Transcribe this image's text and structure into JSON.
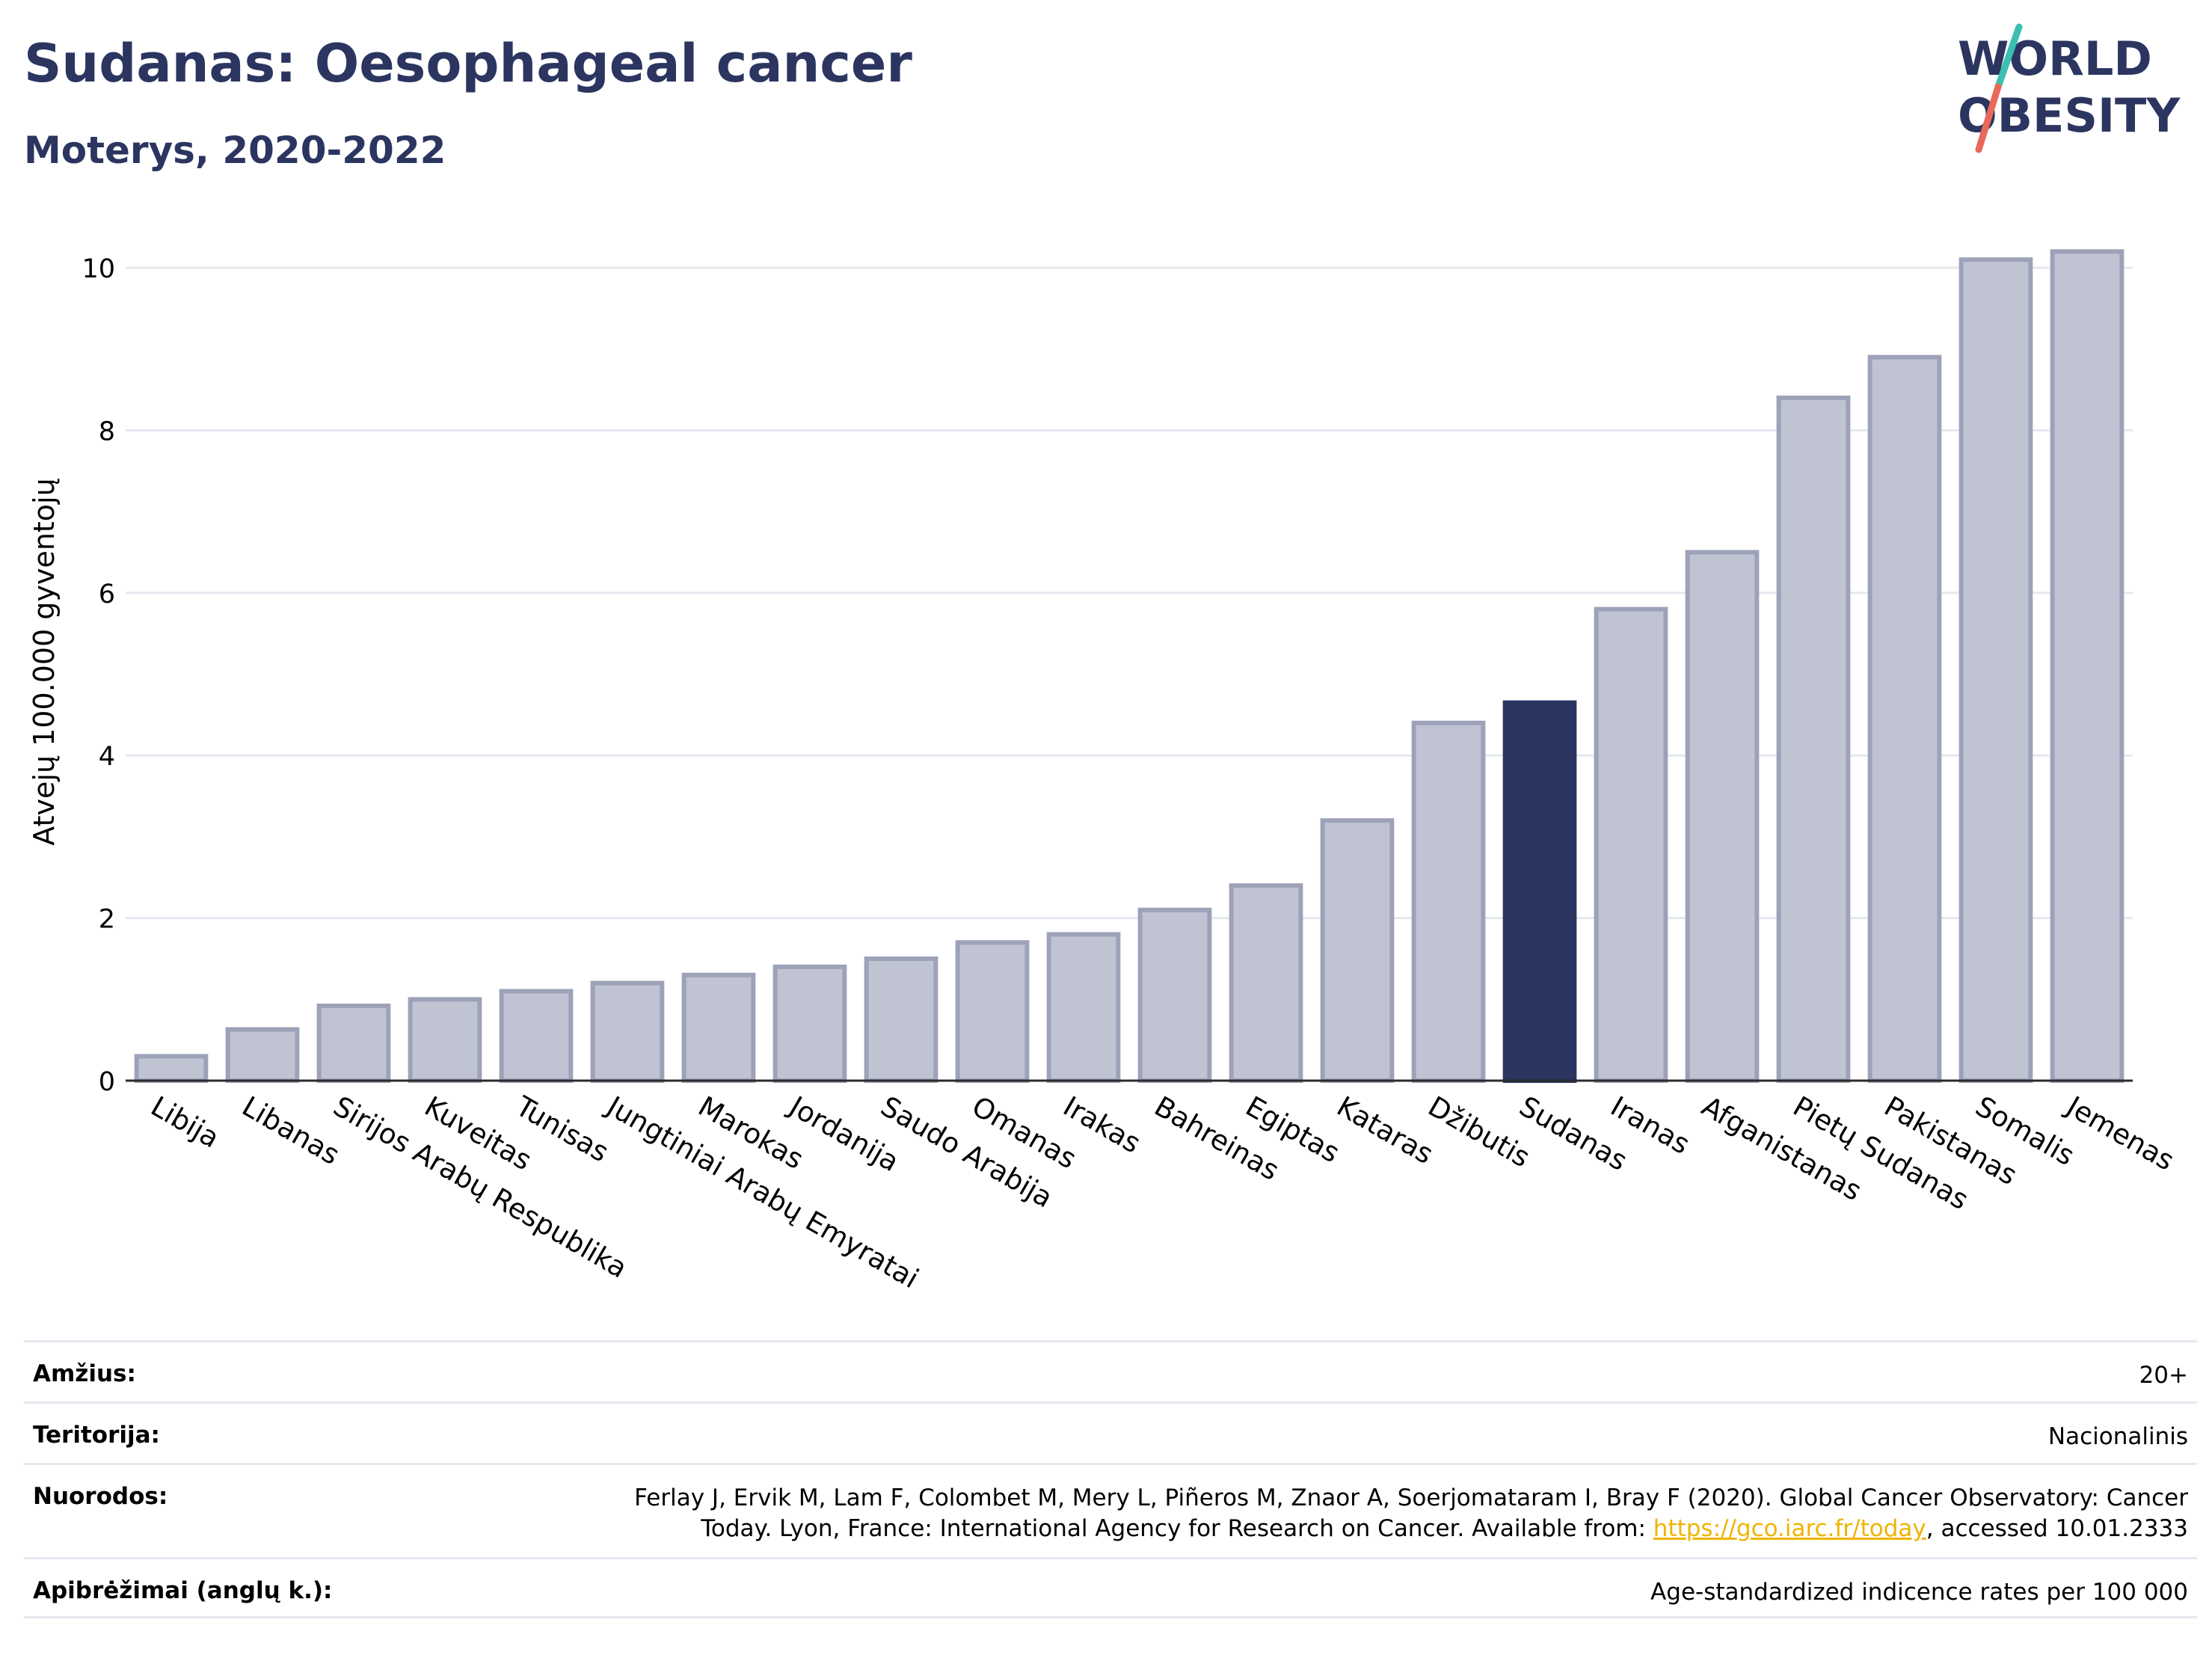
{
  "header": {
    "title": "Sudanas: Oesophageal cancer",
    "subtitle": "Moterys, 2020-2022",
    "logo_line1": "WORLD",
    "logo_line2": "OBESITY"
  },
  "colors": {
    "title": "#2b3560",
    "bar_default": "#c0c3d1",
    "bar_default_stroke": "#9da2b9",
    "bar_highlight": "#2b3560",
    "logo_teal": "#3bbfb0",
    "logo_red": "#e8685a"
  },
  "chart_data": {
    "type": "bar",
    "ylabel": "Atvejų 100.000 gyventojų",
    "ylim": [
      0,
      10.5
    ],
    "yticks": [
      0,
      2,
      4,
      6,
      8,
      10
    ],
    "grid": true,
    "highlight": "Sudanas",
    "categories": [
      "Libija",
      "Libanas",
      "Sirijos Arabų Respublika",
      "Kuveitas",
      "Tunisas",
      "Jungtiniai Arabų Emyratai",
      "Marokas",
      "Jordanija",
      "Saudo Arabija",
      "Omanas",
      "Irakas",
      "Bahreinas",
      "Egiptas",
      "Kataras",
      "Džibutis",
      "Sudanas",
      "Iranas",
      "Afganistanas",
      "Pietų Sudanas",
      "Pakistanas",
      "Somalis",
      "Jemenas"
    ],
    "values": [
      0.3,
      0.63,
      0.92,
      1.0,
      1.1,
      1.2,
      1.3,
      1.4,
      1.5,
      1.7,
      1.8,
      2.1,
      2.4,
      3.2,
      4.4,
      4.65,
      5.8,
      6.5,
      8.4,
      8.9,
      10.1,
      10.2
    ]
  },
  "info": {
    "age_label": "Amžius:",
    "age_value": "20+",
    "territory_label": "Teritorija:",
    "territory_value": "Nacionalinis",
    "refs_label": "Nuorodos:",
    "refs_line1": "Ferlay J, Ervik M, Lam F, Colombet M, Mery L, Piñeros M, Znaor A, Soerjomataram I, Bray F (2020). Global Cancer Observatory: Cancer",
    "refs_line2_pre": "Today. Lyon, France: International Agency for Research on Cancer. Available from: ",
    "refs_link": "https://gco.iarc.fr/today",
    "refs_line2_post": ", accessed 10.01.2333",
    "def_label": "Apibrėžimai (anglų k.):",
    "def_value": "Age-standardized indicence rates per 100 000"
  }
}
